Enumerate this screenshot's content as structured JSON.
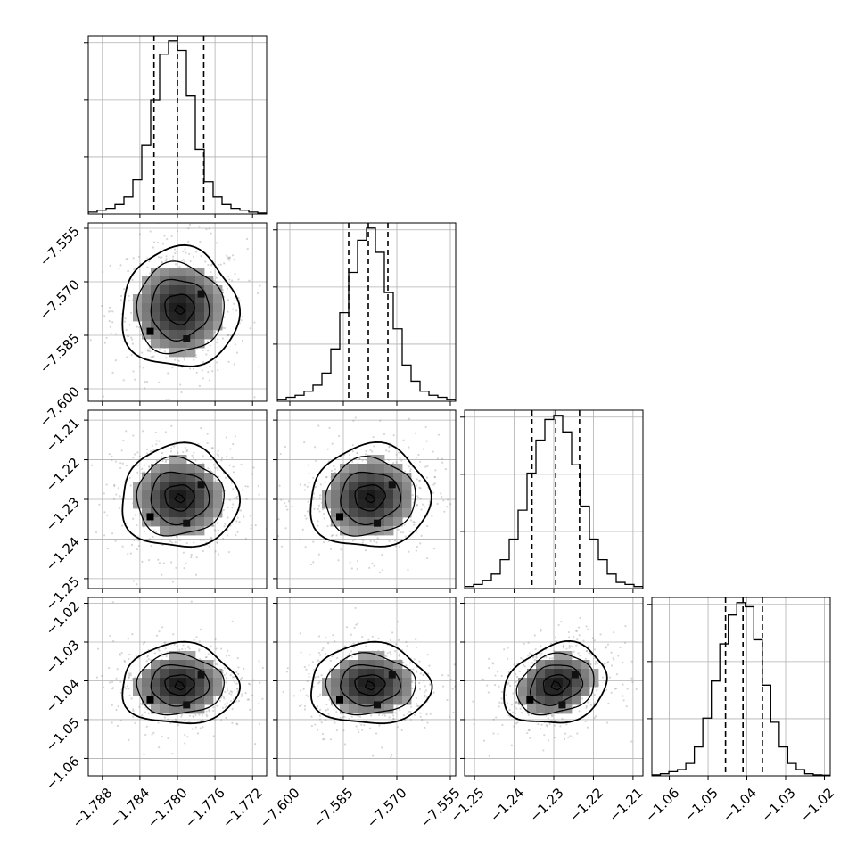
{
  "chart_data": {
    "type": "corner",
    "parameters": [
      {
        "id": "p0",
        "range": [
          -1.7895,
          -1.7705
        ],
        "ticks": [
          -1.788,
          -1.784,
          -1.78,
          -1.776,
          -1.772
        ],
        "tick_labels": [
          "−1.788",
          "−1.784",
          "−1.780",
          "−1.776",
          "−1.772"
        ],
        "quantiles": [
          -1.7825,
          -1.78,
          -1.7772
        ],
        "marginal_hist": [
          1,
          2,
          3,
          5,
          9,
          18,
          36,
          60,
          84,
          91,
          86,
          62,
          34,
          17,
          9,
          5,
          3,
          2,
          1,
          0.5
        ]
      },
      {
        "id": "p1",
        "range": [
          -7.6035,
          -7.5535
        ],
        "ticks": [
          -7.6,
          -7.585,
          -7.57,
          -7.555
        ],
        "tick_labels": [
          "−7.600",
          "−7.585",
          "−7.570",
          "−7.555"
        ],
        "quantiles": [
          -7.5835,
          -7.578,
          -7.5725
        ],
        "marginal_hist": [
          1,
          2,
          3,
          5,
          8,
          14,
          26,
          44,
          64,
          80,
          86,
          74,
          54,
          36,
          18,
          10,
          5,
          3,
          2,
          1
        ]
      },
      {
        "id": "p2",
        "range": [
          -1.2525,
          -1.2075
        ],
        "ticks": [
          -1.25,
          -1.24,
          -1.23,
          -1.22,
          -1.21
        ],
        "tick_labels": [
          "−1.25",
          "−1.24",
          "−1.23",
          "−1.22",
          "−1.21"
        ],
        "quantiles": [
          -1.2355,
          -1.2295,
          -1.2235
        ],
        "marginal_hist": [
          1,
          2,
          4,
          7,
          14,
          24,
          38,
          56,
          72,
          82,
          84,
          76,
          60,
          40,
          24,
          14,
          7,
          3,
          2,
          1
        ]
      },
      {
        "id": "p3",
        "range": [
          -1.0645,
          -1.0185
        ],
        "ticks": [
          -1.06,
          -1.05,
          -1.04,
          -1.03,
          -1.02
        ],
        "tick_labels": [
          "−1.06",
          "−1.05",
          "−1.04",
          "−1.03",
          "−1.02"
        ],
        "quantiles": [
          -1.0455,
          -1.041,
          -1.036
        ],
        "marginal_hist": [
          0.5,
          1,
          2,
          3,
          6,
          14,
          28,
          46,
          64,
          78,
          84,
          82,
          66,
          44,
          26,
          14,
          6,
          3,
          1,
          0.5,
          0.3
        ]
      }
    ],
    "joint": [
      {
        "x": "p0",
        "y": "p1",
        "mean": [
          -1.7798,
          -7.5776
        ],
        "sd": [
          0.0031,
          0.0084
        ],
        "rho": 0.0
      },
      {
        "x": "p0",
        "y": "p2",
        "mean": [
          -1.7798,
          -1.2295
        ],
        "sd": [
          0.0031,
          0.0065
        ],
        "rho": 0.0
      },
      {
        "x": "p1",
        "y": "p2",
        "mean": [
          -7.5776,
          -1.2295
        ],
        "sd": [
          0.0084,
          0.0065
        ],
        "rho": 0.05
      },
      {
        "x": "p0",
        "y": "p3",
        "mean": [
          -1.7798,
          -1.041
        ],
        "sd": [
          0.0031,
          0.0052
        ],
        "rho": 0.0
      },
      {
        "x": "p1",
        "y": "p3",
        "mean": [
          -7.5776,
          -1.041
        ],
        "sd": [
          0.0084,
          0.0052
        ],
        "rho": 0.0
      },
      {
        "x": "p2",
        "y": "p3",
        "mean": [
          -1.2295,
          -1.041
        ],
        "sd": [
          0.0065,
          0.0052
        ],
        "rho": 0.2
      }
    ],
    "title": "",
    "grid": true
  }
}
